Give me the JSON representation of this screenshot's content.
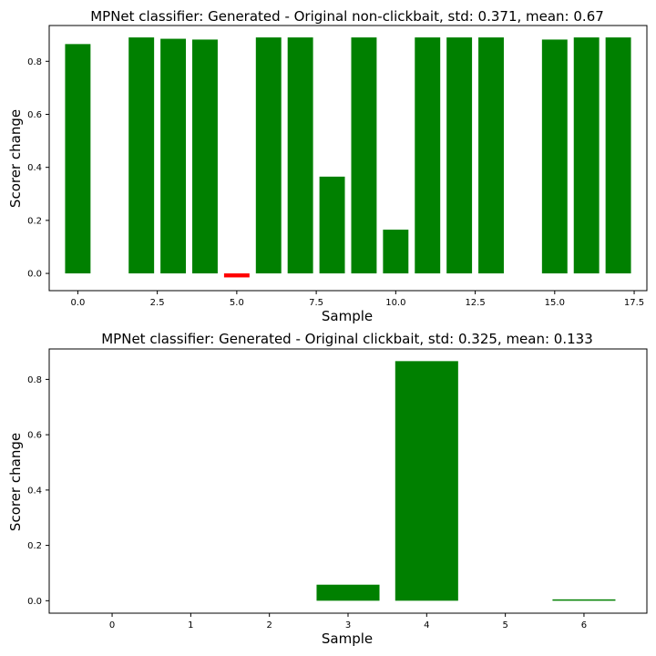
{
  "chart_data": [
    {
      "type": "bar",
      "title": "MPNet classifier: Generated - Original non-clickbait, std: 0.371, mean: 0.67",
      "xlabel": "Sample",
      "ylabel": "Scorer change",
      "x": [
        0,
        1,
        2,
        3,
        4,
        5,
        6,
        7,
        8,
        9,
        10,
        11,
        12,
        13,
        14,
        15,
        16,
        17
      ],
      "values": [
        0.865,
        0.0,
        0.89,
        0.885,
        0.882,
        -0.015,
        0.89,
        0.89,
        0.365,
        0.89,
        0.165,
        0.89,
        0.89,
        0.89,
        0.0,
        0.882,
        0.89,
        0.89
      ],
      "xlim": [
        -0.9,
        17.9
      ],
      "ylim": [
        -0.065,
        0.935
      ],
      "xticks": [
        0.0,
        2.5,
        5.0,
        7.5,
        10.0,
        12.5,
        15.0,
        17.5
      ],
      "xtick_labels": [
        "0.0",
        "2.5",
        "5.0",
        "7.5",
        "10.0",
        "12.5",
        "15.0",
        "17.5"
      ],
      "yticks": [
        0.0,
        0.2,
        0.4,
        0.6,
        0.8
      ],
      "ytick_labels": [
        "0.0",
        "0.2",
        "0.4",
        "0.6",
        "0.8"
      ],
      "positive_color": "#008000",
      "negative_color": "#ff0000",
      "grid": false
    },
    {
      "type": "bar",
      "title": "MPNet classifier: Generated - Original clickbait, std: 0.325, mean: 0.133",
      "xlabel": "Sample",
      "ylabel": "Scorer change",
      "x": [
        0,
        1,
        2,
        3,
        4,
        5,
        6
      ],
      "values": [
        0.0,
        0.0,
        0.0,
        0.058,
        0.866,
        0.0,
        0.004
      ],
      "xlim": [
        -0.8,
        6.8
      ],
      "ylim": [
        -0.045,
        0.91
      ],
      "xticks": [
        0,
        1,
        2,
        3,
        4,
        5,
        6
      ],
      "xtick_labels": [
        "0",
        "1",
        "2",
        "3",
        "4",
        "5",
        "6"
      ],
      "yticks": [
        0.0,
        0.2,
        0.4,
        0.6,
        0.8
      ],
      "ytick_labels": [
        "0.0",
        "0.2",
        "0.4",
        "0.6",
        "0.8"
      ],
      "positive_color": "#008000",
      "negative_color": "#ff0000",
      "grid": false
    }
  ]
}
